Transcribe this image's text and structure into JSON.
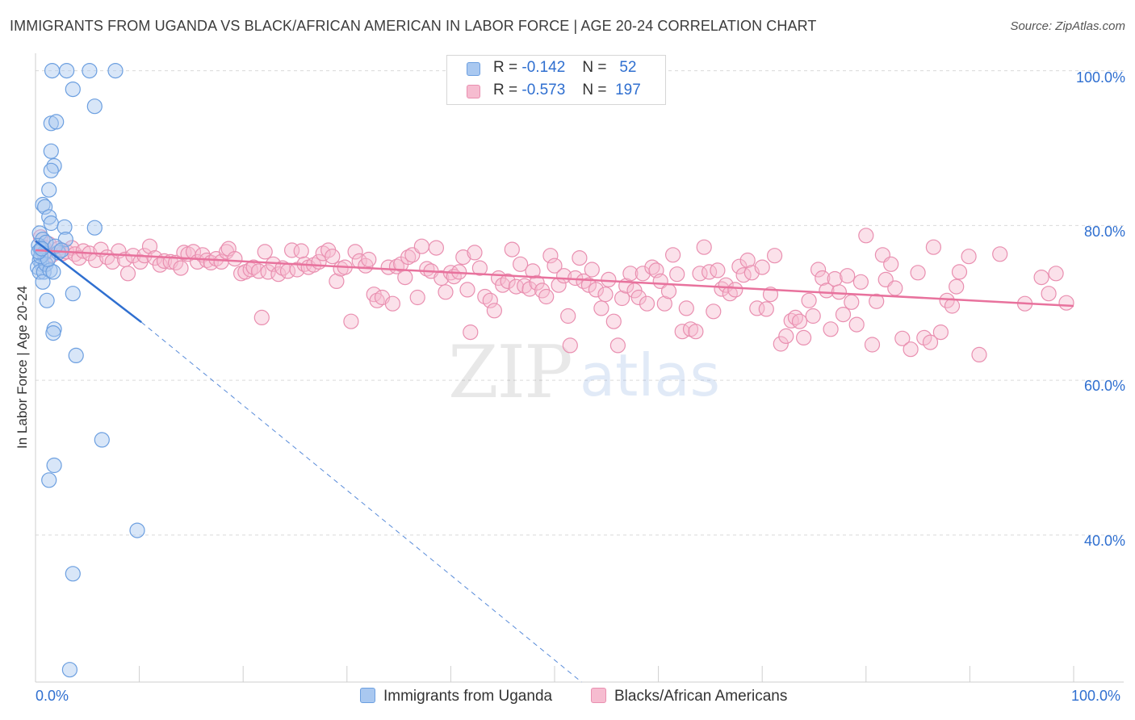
{
  "title": "IMMIGRANTS FROM UGANDA VS BLACK/AFRICAN AMERICAN IN LABOR FORCE | AGE 20-24 CORRELATION CHART",
  "source": "Source: ZipAtlas.com",
  "legend": {
    "row1": {
      "r_label": "R =",
      "r_value": "-0.142",
      "n_label": "N =",
      "n_value": "52"
    },
    "row2": {
      "r_label": "R =",
      "r_value": "-0.573",
      "n_label": "N =",
      "n_value": "197"
    }
  },
  "colors": {
    "blue_fill": "#a9c8f0",
    "blue_stroke": "#6c9fe0",
    "blue_line": "#2f6fd0",
    "pink_fill": "#f6bcd0",
    "pink_stroke": "#e98fb0",
    "pink_line": "#e8729d",
    "tick_text": "#2f6fd0",
    "grid": "#dadada"
  },
  "chart_data": {
    "type": "scatter",
    "title": "IMMIGRANTS FROM UGANDA VS BLACK/AFRICAN AMERICAN IN LABOR FORCE | AGE 20-24 CORRELATION CHART",
    "xlabel": "",
    "ylabel": "In Labor Force | Age 20-24",
    "xlim": [
      0,
      100
    ],
    "ylim": [
      21,
      101
    ],
    "x_tick_labels": [
      "0.0%",
      "100.0%"
    ],
    "y_ticks": [
      40,
      60,
      80,
      100
    ],
    "y_tick_labels": [
      "40.0%",
      "60.0%",
      "80.0%",
      "100.0%"
    ],
    "series": [
      {
        "name": "Immigrants from Uganda",
        "r": -0.142,
        "n": 52,
        "points": [
          [
            1.6,
            100
          ],
          [
            3.0,
            100
          ],
          [
            5.2,
            100
          ],
          [
            7.7,
            100
          ],
          [
            3.6,
            97.6
          ],
          [
            5.7,
            95.4
          ],
          [
            1.5,
            93.2
          ],
          [
            2.0,
            93.4
          ],
          [
            1.5,
            89.6
          ],
          [
            1.8,
            87.7
          ],
          [
            1.5,
            87.1
          ],
          [
            1.3,
            84.6
          ],
          [
            0.7,
            82.7
          ],
          [
            0.9,
            82.4
          ],
          [
            1.3,
            81.1
          ],
          [
            1.5,
            80.3
          ],
          [
            2.8,
            79.8
          ],
          [
            5.7,
            79.7
          ],
          [
            0.4,
            79.0
          ],
          [
            0.7,
            78.2
          ],
          [
            0.3,
            77.4
          ],
          [
            0.5,
            76.9
          ],
          [
            0.8,
            76.4
          ],
          [
            1.0,
            77.8
          ],
          [
            2.9,
            78.2
          ],
          [
            2.2,
            76.5
          ],
          [
            0.4,
            75.5
          ],
          [
            0.6,
            75.0
          ],
          [
            0.2,
            74.6
          ],
          [
            0.4,
            74.0
          ],
          [
            0.8,
            74.0
          ],
          [
            1.0,
            75.0
          ],
          [
            1.4,
            74.2
          ],
          [
            1.7,
            74.0
          ],
          [
            0.7,
            72.7
          ],
          [
            3.6,
            71.2
          ],
          [
            1.1,
            70.3
          ],
          [
            1.8,
            66.6
          ],
          [
            1.7,
            66.1
          ],
          [
            3.9,
            63.2
          ],
          [
            6.4,
            52.3
          ],
          [
            1.8,
            49.0
          ],
          [
            1.3,
            47.1
          ],
          [
            9.8,
            40.6
          ],
          [
            3.6,
            35.0
          ],
          [
            3.3,
            22.6
          ],
          [
            0.5,
            76.0
          ],
          [
            1.2,
            75.6
          ],
          [
            0.3,
            76.6
          ],
          [
            0.6,
            77.0
          ],
          [
            1.9,
            77.3
          ],
          [
            2.5,
            76.8
          ]
        ],
        "trend": {
          "x0": 0,
          "y0": 78.0,
          "x1": 10.2,
          "y1": 67.5,
          "dash_x1": 52.6,
          "dash_y1": 21.0
        }
      },
      {
        "name": "Blacks/African Americans",
        "r": -0.573,
        "n": 197,
        "points": [
          [
            0.5,
            78.5
          ],
          [
            0.8,
            77.2
          ],
          [
            1.0,
            76.5
          ],
          [
            1.3,
            77.6
          ],
          [
            1.6,
            76.2
          ],
          [
            2.2,
            77.0
          ],
          [
            2.6,
            76.4
          ],
          [
            3.0,
            76.6
          ],
          [
            3.5,
            77.1
          ],
          [
            3.8,
            76.3
          ],
          [
            4.2,
            75.8
          ],
          [
            4.6,
            76.7
          ],
          [
            5.2,
            76.4
          ],
          [
            5.8,
            75.5
          ],
          [
            6.3,
            76.9
          ],
          [
            6.9,
            75.9
          ],
          [
            7.4,
            75.3
          ],
          [
            8.0,
            76.7
          ],
          [
            8.6,
            75.6
          ],
          [
            8.9,
            73.8
          ],
          [
            9.4,
            76.1
          ],
          [
            10.1,
            75.3
          ],
          [
            10.5,
            76.1
          ],
          [
            11.0,
            77.3
          ],
          [
            11.5,
            75.8
          ],
          [
            12.0,
            74.9
          ],
          [
            12.4,
            75.4
          ],
          [
            13.0,
            75.3
          ],
          [
            13.5,
            75.2
          ],
          [
            14.0,
            74.5
          ],
          [
            14.3,
            76.5
          ],
          [
            14.7,
            76.3
          ],
          [
            15.2,
            76.6
          ],
          [
            15.6,
            75.3
          ],
          [
            16.1,
            76.2
          ],
          [
            16.5,
            75.5
          ],
          [
            16.9,
            75.2
          ],
          [
            17.4,
            75.7
          ],
          [
            17.9,
            75.3
          ],
          [
            18.4,
            76.6
          ],
          [
            18.6,
            77.0
          ],
          [
            19.2,
            75.7
          ],
          [
            19.8,
            73.8
          ],
          [
            20.2,
            74.0
          ],
          [
            20.7,
            74.3
          ],
          [
            21.0,
            74.6
          ],
          [
            21.5,
            74.1
          ],
          [
            21.8,
            68.1
          ],
          [
            22.1,
            76.6
          ],
          [
            22.4,
            74.0
          ],
          [
            22.9,
            75.0
          ],
          [
            23.4,
            73.7
          ],
          [
            23.8,
            74.5
          ],
          [
            24.3,
            74.1
          ],
          [
            24.7,
            76.8
          ],
          [
            25.2,
            74.3
          ],
          [
            25.6,
            76.7
          ],
          [
            25.9,
            75.0
          ],
          [
            26.3,
            74.6
          ],
          [
            26.8,
            74.9
          ],
          [
            27.3,
            75.3
          ],
          [
            27.7,
            76.4
          ],
          [
            28.2,
            76.8
          ],
          [
            28.6,
            76.0
          ],
          [
            29.0,
            72.8
          ],
          [
            29.4,
            74.4
          ],
          [
            29.8,
            74.6
          ],
          [
            30.4,
            67.6
          ],
          [
            30.8,
            76.6
          ],
          [
            31.2,
            75.4
          ],
          [
            31.8,
            74.8
          ],
          [
            32.1,
            75.6
          ],
          [
            32.6,
            71.1
          ],
          [
            32.9,
            70.3
          ],
          [
            33.4,
            70.7
          ],
          [
            34.0,
            74.6
          ],
          [
            34.4,
            69.9
          ],
          [
            34.8,
            74.7
          ],
          [
            35.2,
            75.0
          ],
          [
            35.6,
            73.3
          ],
          [
            35.9,
            75.9
          ],
          [
            36.3,
            76.2
          ],
          [
            36.8,
            70.7
          ],
          [
            37.2,
            77.3
          ],
          [
            37.7,
            74.4
          ],
          [
            38.1,
            74.1
          ],
          [
            38.6,
            77.1
          ],
          [
            39.1,
            73.2
          ],
          [
            39.5,
            71.4
          ],
          [
            40.0,
            73.9
          ],
          [
            40.3,
            73.4
          ],
          [
            40.8,
            74.0
          ],
          [
            41.2,
            75.9
          ],
          [
            41.6,
            71.7
          ],
          [
            41.9,
            66.2
          ],
          [
            42.3,
            76.5
          ],
          [
            42.8,
            74.5
          ],
          [
            43.3,
            70.8
          ],
          [
            43.8,
            70.3
          ],
          [
            44.2,
            69.0
          ],
          [
            44.6,
            73.2
          ],
          [
            45.0,
            72.3
          ],
          [
            45.5,
            72.8
          ],
          [
            45.9,
            76.9
          ],
          [
            46.3,
            72.1
          ],
          [
            46.7,
            75.0
          ],
          [
            47.1,
            72.2
          ],
          [
            47.6,
            71.8
          ],
          [
            47.9,
            74.1
          ],
          [
            48.3,
            72.6
          ],
          [
            48.8,
            71.6
          ],
          [
            49.2,
            70.8
          ],
          [
            49.6,
            76.1
          ],
          [
            50.0,
            74.8
          ],
          [
            50.4,
            72.3
          ],
          [
            50.9,
            73.5
          ],
          [
            51.3,
            68.3
          ],
          [
            51.5,
            64.5
          ],
          [
            52.0,
            73.2
          ],
          [
            52.4,
            75.8
          ],
          [
            52.8,
            72.8
          ],
          [
            53.3,
            72.3
          ],
          [
            53.6,
            74.3
          ],
          [
            54.0,
            71.7
          ],
          [
            54.5,
            69.3
          ],
          [
            54.9,
            71.1
          ],
          [
            55.2,
            73.0
          ],
          [
            55.7,
            67.6
          ],
          [
            56.1,
            64.5
          ],
          [
            56.5,
            70.6
          ],
          [
            56.9,
            72.2
          ],
          [
            57.3,
            73.8
          ],
          [
            57.7,
            71.6
          ],
          [
            58.1,
            70.7
          ],
          [
            58.5,
            73.8
          ],
          [
            58.9,
            69.9
          ],
          [
            59.4,
            74.6
          ],
          [
            59.8,
            74.2
          ],
          [
            60.2,
            72.8
          ],
          [
            60.6,
            69.9
          ],
          [
            61.0,
            71.5
          ],
          [
            61.4,
            76.2
          ],
          [
            61.8,
            73.7
          ],
          [
            62.3,
            66.3
          ],
          [
            62.7,
            69.3
          ],
          [
            63.1,
            66.6
          ],
          [
            63.6,
            66.3
          ],
          [
            64.0,
            73.8
          ],
          [
            64.4,
            77.2
          ],
          [
            64.9,
            74.0
          ],
          [
            65.3,
            68.9
          ],
          [
            65.7,
            74.2
          ],
          [
            66.1,
            71.8
          ],
          [
            66.5,
            72.3
          ],
          [
            66.9,
            71.2
          ],
          [
            67.4,
            71.7
          ],
          [
            67.8,
            74.7
          ],
          [
            68.2,
            73.6
          ],
          [
            68.6,
            75.5
          ],
          [
            69.0,
            73.9
          ],
          [
            69.5,
            69.3
          ],
          [
            70.0,
            74.6
          ],
          [
            70.4,
            69.2
          ],
          [
            70.8,
            71.1
          ],
          [
            71.2,
            76.1
          ],
          [
            71.8,
            64.7
          ],
          [
            72.3,
            65.7
          ],
          [
            72.8,
            67.7
          ],
          [
            73.2,
            68.1
          ],
          [
            73.6,
            67.6
          ],
          [
            74.0,
            65.5
          ],
          [
            74.5,
            70.3
          ],
          [
            74.9,
            68.3
          ],
          [
            75.4,
            74.3
          ],
          [
            75.8,
            73.2
          ],
          [
            76.2,
            71.6
          ],
          [
            76.6,
            66.6
          ],
          [
            77.0,
            73.1
          ],
          [
            77.4,
            71.4
          ],
          [
            77.8,
            68.5
          ],
          [
            78.2,
            73.5
          ],
          [
            78.6,
            70.1
          ],
          [
            79.1,
            67.2
          ],
          [
            79.5,
            72.7
          ],
          [
            80.0,
            78.7
          ],
          [
            80.6,
            64.6
          ],
          [
            81.0,
            70.2
          ],
          [
            81.6,
            76.2
          ],
          [
            81.9,
            73.0
          ],
          [
            82.4,
            75.0
          ],
          [
            82.8,
            71.9
          ],
          [
            83.5,
            65.4
          ],
          [
            84.3,
            64.0
          ],
          [
            85.0,
            73.9
          ],
          [
            85.6,
            65.5
          ],
          [
            86.2,
            64.9
          ],
          [
            86.5,
            77.2
          ],
          [
            87.2,
            66.2
          ],
          [
            87.8,
            70.3
          ],
          [
            88.3,
            69.6
          ],
          [
            88.7,
            72.1
          ],
          [
            89.0,
            74.0
          ],
          [
            89.9,
            76.0
          ],
          [
            90.9,
            63.3
          ],
          [
            92.9,
            76.3
          ],
          [
            95.3,
            69.9
          ],
          [
            96.9,
            73.3
          ],
          [
            97.6,
            71.2
          ],
          [
            98.3,
            73.8
          ],
          [
            99.3,
            70.0
          ]
        ],
        "trend": {
          "x0": 0,
          "y0": 76.8,
          "x1": 100,
          "y1": 69.6
        }
      }
    ]
  },
  "bottom_legend": {
    "item1": "Immigrants from Uganda",
    "item2": "Blacks/African Americans"
  },
  "watermark": "ZIPatlas"
}
